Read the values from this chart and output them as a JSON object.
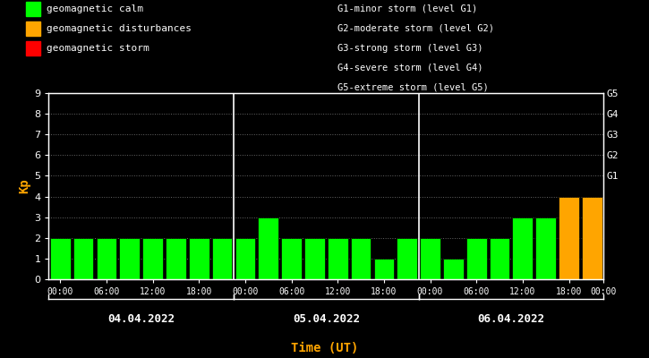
{
  "days": [
    "04.04.2022",
    "05.04.2022",
    "06.04.2022"
  ],
  "bar_values": [
    [
      2,
      2,
      2,
      2,
      2,
      2,
      2,
      2
    ],
    [
      2,
      3,
      2,
      2,
      2,
      2,
      1,
      2
    ],
    [
      2,
      1,
      2,
      2,
      3,
      3,
      4,
      4
    ]
  ],
  "bar_colors": [
    [
      "#00ff00",
      "#00ff00",
      "#00ff00",
      "#00ff00",
      "#00ff00",
      "#00ff00",
      "#00ff00",
      "#00ff00"
    ],
    [
      "#00ff00",
      "#00ff00",
      "#00ff00",
      "#00ff00",
      "#00ff00",
      "#00ff00",
      "#00ff00",
      "#00ff00"
    ],
    [
      "#00ff00",
      "#00ff00",
      "#00ff00",
      "#00ff00",
      "#00ff00",
      "#00ff00",
      "#ffa500",
      "#ffa500"
    ]
  ],
  "ylim": [
    0,
    9
  ],
  "yticks": [
    0,
    1,
    2,
    3,
    4,
    5,
    6,
    7,
    8,
    9
  ],
  "xlabel": "Time (UT)",
  "ylabel": "Kp",
  "bg_color": "#000000",
  "text_color": "#ffffff",
  "xlabel_color": "#ffa500",
  "ylabel_color": "#ffa500",
  "grid_color": "#ffffff",
  "bar_edge_color": "#000000",
  "right_labels": [
    "G5",
    "G4",
    "G3",
    "G2",
    "G1"
  ],
  "right_label_yvals": [
    9,
    8,
    7,
    6,
    5
  ],
  "right_label_color": "#ffffff",
  "legend_items": [
    {
      "label": "geomagnetic calm",
      "color": "#00ff00"
    },
    {
      "label": "geomagnetic disturbances",
      "color": "#ffa500"
    },
    {
      "label": "geomagnetic storm",
      "color": "#ff0000"
    }
  ],
  "storm_labels": [
    "G1-minor storm (level G1)",
    "G2-moderate storm (level G2)",
    "G3-strong storm (level G3)",
    "G4-severe storm (level G4)",
    "G5-extreme storm (level G5)"
  ],
  "vline_positions": [
    8,
    16
  ]
}
